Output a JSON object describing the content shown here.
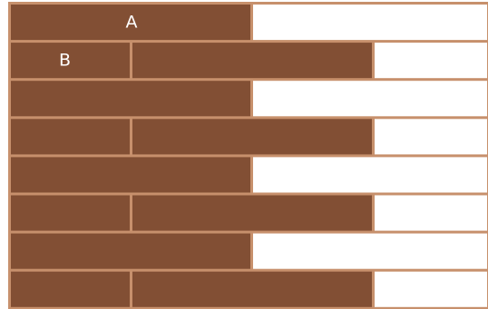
{
  "diagram": {
    "type": "plank-pattern",
    "rows": 8,
    "pattern": [
      "long",
      "short-long",
      "long",
      "short-long",
      "long",
      "short-long",
      "long",
      "short-long"
    ],
    "labels": {
      "long_plank": "A",
      "short_plank": "B"
    },
    "colors": {
      "plank": "#824f34",
      "grout": "#c7906c",
      "blank": "#ffffff"
    }
  }
}
